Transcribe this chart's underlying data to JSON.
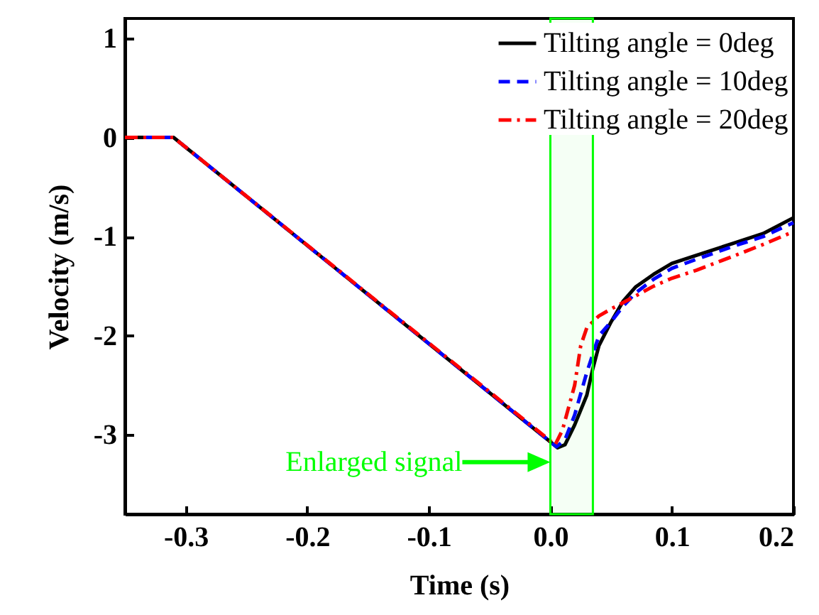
{
  "chart_data": {
    "type": "line",
    "xlabel": "Time (s)",
    "ylabel": "Velocity (m/s)",
    "xlim": [
      -0.35,
      0.2
    ],
    "xticks": [
      {
        "value": -0.3,
        "label": "-0.3"
      },
      {
        "value": -0.2,
        "label": "-0.2"
      },
      {
        "value": -0.1,
        "label": "-0.1"
      },
      {
        "value": 0,
        "label": "0.0"
      },
      {
        "value": 0.1,
        "label": "0.1"
      },
      {
        "value": 0.2,
        "label": "0.2"
      }
    ],
    "ylim": [
      -3.8,
      1.2
    ],
    "yticks": [
      -3,
      -2,
      -1,
      0,
      1
    ],
    "grid": false,
    "legend": "top right",
    "marker": "none",
    "series": [
      {
        "name": "Tilting angle = 0deg",
        "color": "#000000",
        "line_style": "solid",
        "x": [
          -0.35,
          -0.31,
          0.006,
          0.012,
          0.02,
          0.03,
          0.035,
          0.04,
          0.05,
          0.06,
          0.07,
          0.085,
          0.1,
          0.12,
          0.15,
          0.175,
          0.2
        ],
        "values": [
          0,
          0,
          -3.13,
          -3.1,
          -2.9,
          -2.6,
          -2.33,
          -2.1,
          -1.86,
          -1.65,
          -1.51,
          -1.38,
          -1.27,
          -1.19,
          -1.07,
          -0.97,
          -0.81
        ]
      },
      {
        "name": "Tilting angle = 10deg",
        "color": "#0000ff",
        "line_style": "dashed",
        "x": [
          -0.35,
          -0.31,
          0.005,
          0.012,
          0.02,
          0.03,
          0.04,
          0.05,
          0.06,
          0.07,
          0.085,
          0.1,
          0.12,
          0.15,
          0.175,
          0.2
        ],
        "values": [
          0,
          0,
          -3.12,
          -3.05,
          -2.8,
          -2.37,
          -2.0,
          -1.86,
          -1.7,
          -1.57,
          -1.43,
          -1.32,
          -1.23,
          -1.1,
          -1.0,
          -0.86
        ]
      },
      {
        "name": "Tilting angle = 20deg",
        "color": "#ff0000",
        "line_style": "dashdot",
        "x": [
          -0.35,
          -0.31,
          0.004,
          0.01,
          0.02,
          0.025,
          0.03,
          0.04,
          0.05,
          0.07,
          0.085,
          0.1,
          0.12,
          0.15,
          0.175,
          0.2
        ],
        "values": [
          0,
          0,
          -3.1,
          -2.95,
          -2.5,
          -2.1,
          -1.92,
          -1.8,
          -1.73,
          -1.6,
          -1.5,
          -1.42,
          -1.34,
          -1.2,
          -1.08,
          -0.95
        ]
      }
    ],
    "bands": [
      {
        "axis": "x",
        "from": 0,
        "to": 0.035,
        "color": "#00ff00"
      }
    ],
    "annotations": [
      "Enlarged signal"
    ]
  }
}
